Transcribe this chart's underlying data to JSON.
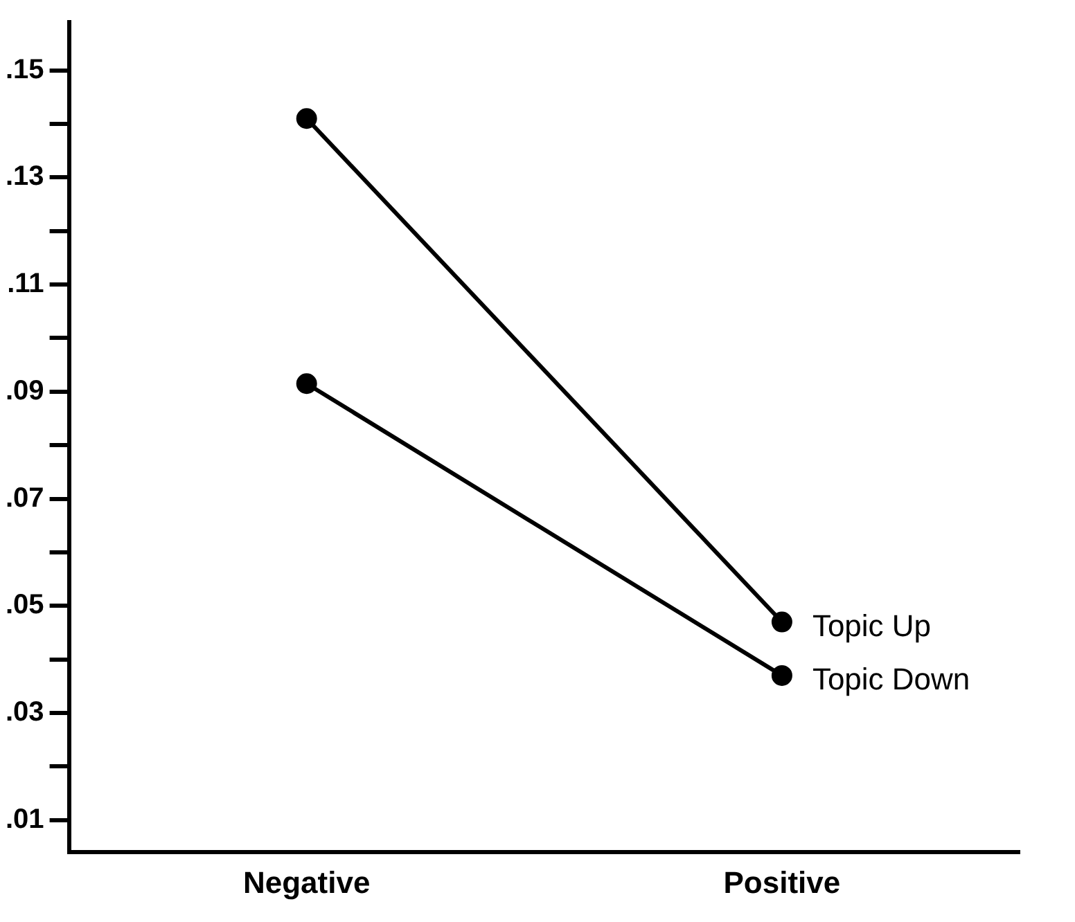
{
  "chart_data": {
    "type": "line",
    "categories": [
      "Negative",
      "Positive"
    ],
    "series": [
      {
        "name": "Topic Up",
        "color": "#000000",
        "values": [
          0.141,
          0.047
        ]
      },
      {
        "name": "Topic Down",
        "color": "#000000",
        "values": [
          0.0915,
          0.037
        ]
      }
    ],
    "ylim": [
      0.004,
      0.159
    ],
    "yticks": [
      {
        "value": 0.01,
        "label": ".01"
      },
      {
        "value": 0.02,
        "label": null
      },
      {
        "value": 0.03,
        "label": ".03"
      },
      {
        "value": 0.04,
        "label": null
      },
      {
        "value": 0.05,
        "label": ".05"
      },
      {
        "value": 0.06,
        "label": null
      },
      {
        "value": 0.07,
        "label": ".07"
      },
      {
        "value": 0.08,
        "label": null
      },
      {
        "value": 0.09,
        "label": ".09"
      },
      {
        "value": 0.1,
        "label": null
      },
      {
        "value": 0.11,
        "label": ".11"
      },
      {
        "value": 0.12,
        "label": null
      },
      {
        "value": 0.13,
        "label": ".13"
      },
      {
        "value": 0.14,
        "label": null
      },
      {
        "value": 0.15,
        "label": ".15"
      }
    ],
    "grid": false,
    "legend": false,
    "marker": "circle",
    "line_style": "solid"
  }
}
